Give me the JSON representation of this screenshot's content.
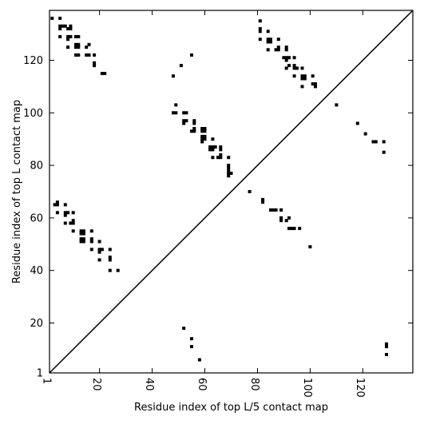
{
  "chart_data": {
    "type": "scatter",
    "title": "",
    "xlabel": "Residue index of top L/5 contact map",
    "ylabel": "Residue index of top L contact map",
    "xlim": [
      1,
      139
    ],
    "ylim": [
      1,
      139
    ],
    "xticks": [
      1,
      20,
      40,
      60,
      80,
      100,
      120
    ],
    "yticks": [
      1,
      20,
      40,
      60,
      80,
      100,
      120
    ],
    "grid": false,
    "diagonal_line": true,
    "marker_color": "#000000",
    "line_color": "#000000",
    "series": [
      {
        "points": [
          [
            52,
            18
          ],
          [
            55,
            14
          ],
          [
            55,
            11
          ],
          [
            58,
            6
          ],
          [
            100,
            49
          ],
          [
            49,
            103
          ],
          [
            51,
            118
          ],
          [
            55,
            122
          ],
          [
            48,
            114
          ],
          [
            48,
            100
          ],
          [
            49,
            100
          ],
          [
            52,
            100
          ],
          [
            53,
            100
          ],
          [
            52,
            97
          ],
          [
            52,
            96
          ],
          [
            53,
            97
          ],
          [
            56,
            97
          ],
          [
            56,
            96
          ],
          [
            56,
            94
          ],
          [
            55,
            93
          ],
          [
            56,
            93
          ],
          [
            59,
            94
          ],
          [
            60,
            94
          ],
          [
            59,
            93
          ],
          [
            60,
            93
          ],
          [
            59,
            91
          ],
          [
            60,
            91
          ],
          [
            60,
            90
          ],
          [
            59,
            90
          ],
          [
            59,
            89
          ],
          [
            63,
            90
          ],
          [
            62,
            87
          ],
          [
            63,
            87
          ],
          [
            64,
            87
          ],
          [
            62,
            86
          ],
          [
            63,
            86
          ],
          [
            63,
            83
          ],
          [
            66,
            87
          ],
          [
            66,
            86
          ],
          [
            66,
            84
          ],
          [
            65,
            83
          ],
          [
            66,
            83
          ],
          [
            69,
            83
          ],
          [
            69,
            80
          ],
          [
            69,
            79
          ],
          [
            69,
            78
          ],
          [
            69,
            77
          ],
          [
            70,
            77
          ],
          [
            69,
            76
          ],
          [
            77,
            70
          ],
          [
            82,
            67
          ],
          [
            82,
            66
          ],
          [
            85,
            63
          ],
          [
            86,
            63
          ],
          [
            87,
            63
          ],
          [
            89,
            63
          ],
          [
            89,
            60
          ],
          [
            89,
            59
          ],
          [
            91,
            59
          ],
          [
            92,
            60
          ],
          [
            92,
            56
          ],
          [
            93,
            56
          ],
          [
            94,
            56
          ],
          [
            96,
            56
          ],
          [
            81,
            135
          ],
          [
            81,
            132
          ],
          [
            81,
            131
          ],
          [
            81,
            128
          ],
          [
            84,
            131
          ],
          [
            84,
            128
          ],
          [
            85,
            128
          ],
          [
            85,
            127
          ],
          [
            84,
            127
          ],
          [
            84,
            124
          ],
          [
            87,
            124
          ],
          [
            88,
            124
          ],
          [
            88,
            125
          ],
          [
            88,
            128
          ],
          [
            91,
            125
          ],
          [
            91,
            124
          ],
          [
            90,
            121
          ],
          [
            91,
            121
          ],
          [
            91,
            120
          ],
          [
            92,
            121
          ],
          [
            94,
            121
          ],
          [
            91,
            117
          ],
          [
            92,
            118
          ],
          [
            94,
            118
          ],
          [
            94,
            117
          ],
          [
            95,
            117
          ],
          [
            94,
            114
          ],
          [
            97,
            117
          ],
          [
            97,
            114
          ],
          [
            98,
            114
          ],
          [
            97,
            113
          ],
          [
            98,
            113
          ],
          [
            97,
            110
          ],
          [
            101,
            114
          ],
          [
            101,
            111
          ],
          [
            102,
            111
          ],
          [
            102,
            110
          ],
          [
            110,
            103
          ],
          [
            118,
            96
          ],
          [
            121,
            92
          ],
          [
            124,
            89
          ],
          [
            125,
            89
          ],
          [
            128,
            89
          ],
          [
            128,
            85
          ],
          [
            129,
            12
          ],
          [
            129,
            11
          ],
          [
            129,
            8
          ],
          [
            2,
            136
          ],
          [
            5,
            136
          ],
          [
            5,
            133
          ],
          [
            6,
            133
          ],
          [
            5,
            132
          ],
          [
            7,
            133
          ],
          [
            8,
            132
          ],
          [
            9,
            132
          ],
          [
            9,
            133
          ],
          [
            5,
            129
          ],
          [
            8,
            129
          ],
          [
            9,
            129
          ],
          [
            8,
            128
          ],
          [
            11,
            129
          ],
          [
            12,
            129
          ],
          [
            8,
            125
          ],
          [
            11,
            125
          ],
          [
            12,
            125
          ],
          [
            11,
            126
          ],
          [
            12,
            126
          ],
          [
            15,
            125
          ],
          [
            16,
            126
          ],
          [
            11,
            122
          ],
          [
            12,
            122
          ],
          [
            15,
            122
          ],
          [
            16,
            122
          ],
          [
            18,
            122
          ],
          [
            18,
            119
          ],
          [
            18,
            118
          ],
          [
            21,
            115
          ],
          [
            22,
            115
          ],
          [
            3,
            65
          ],
          [
            4,
            66
          ],
          [
            4,
            65
          ],
          [
            4,
            62
          ],
          [
            7,
            65
          ],
          [
            7,
            62
          ],
          [
            8,
            62
          ],
          [
            7,
            58
          ],
          [
            7,
            61
          ],
          [
            10,
            62
          ],
          [
            10,
            59
          ],
          [
            10,
            58
          ],
          [
            9,
            58
          ],
          [
            10,
            55
          ],
          [
            13,
            55
          ],
          [
            14,
            55
          ],
          [
            13,
            54
          ],
          [
            14,
            54
          ],
          [
            13,
            52
          ],
          [
            14,
            52
          ],
          [
            13,
            51
          ],
          [
            14,
            51
          ],
          [
            17,
            55
          ],
          [
            17,
            52
          ],
          [
            17,
            51
          ],
          [
            17,
            48
          ],
          [
            20,
            51
          ],
          [
            20,
            48
          ],
          [
            21,
            48
          ],
          [
            20,
            47
          ],
          [
            20,
            44
          ],
          [
            24,
            48
          ],
          [
            24,
            45
          ],
          [
            24,
            44
          ],
          [
            24,
            40
          ],
          [
            27,
            40
          ]
        ]
      }
    ]
  }
}
